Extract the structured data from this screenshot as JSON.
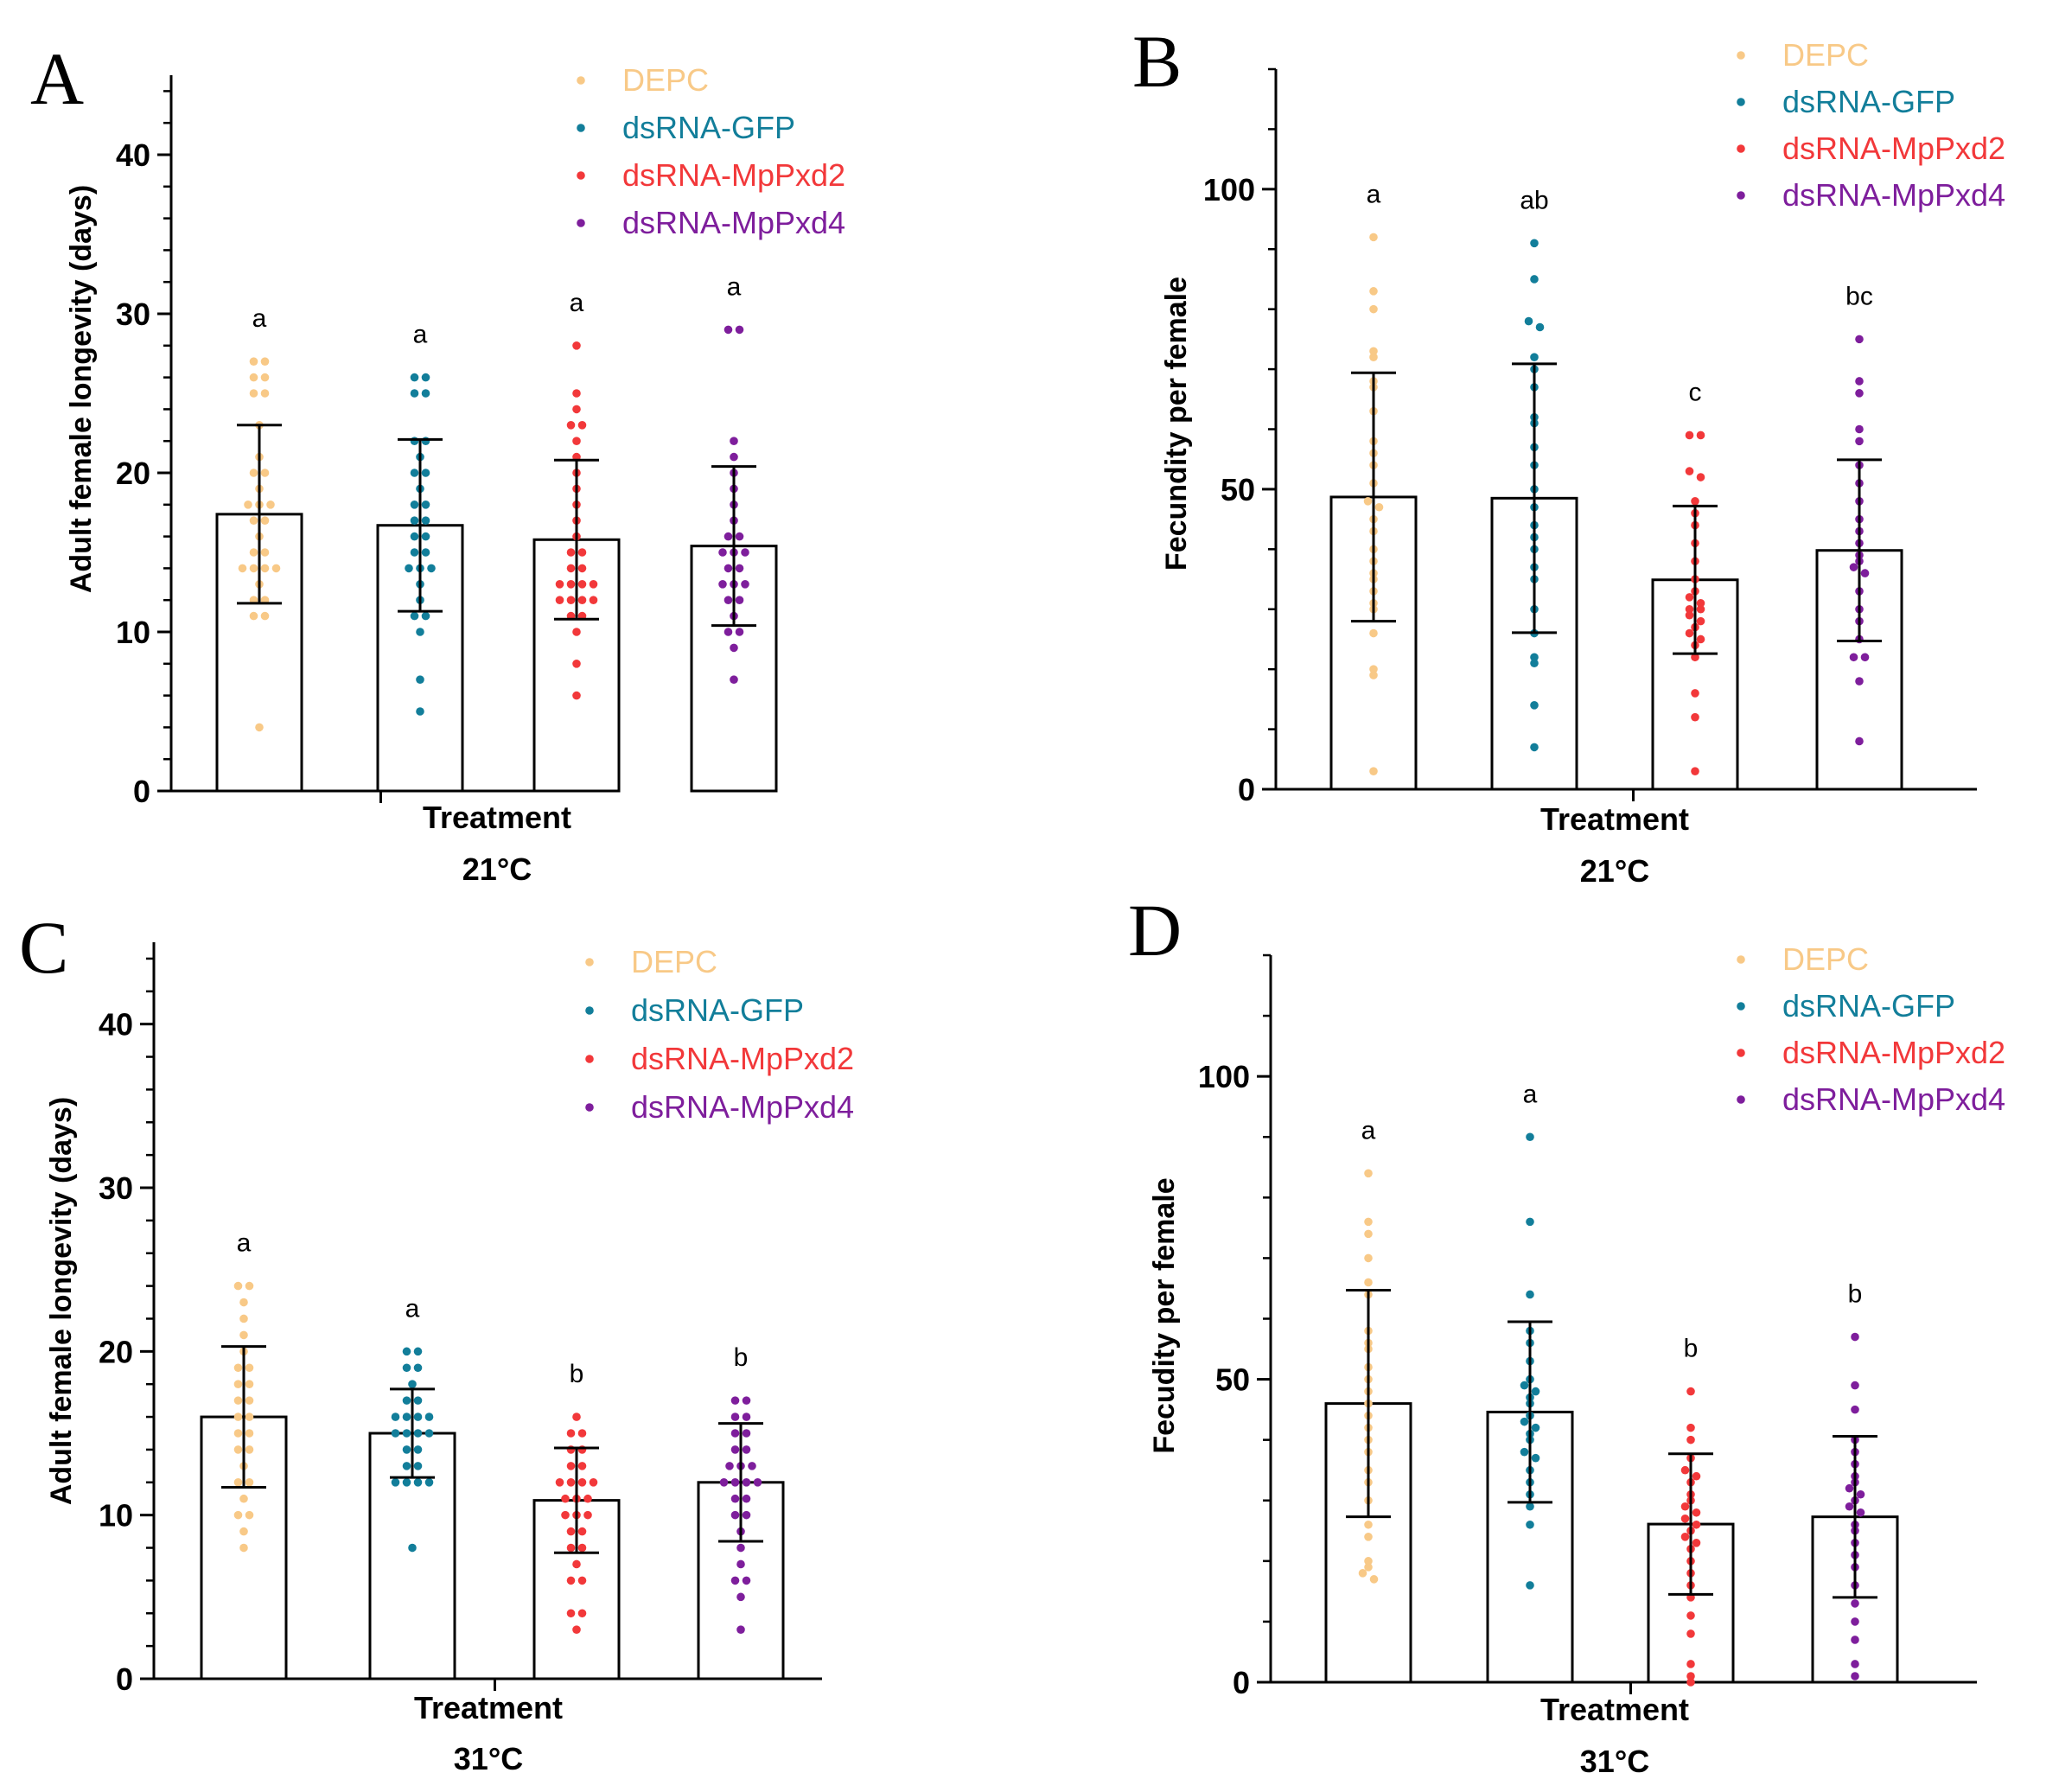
{
  "chart_data": [
    {
      "panel": "A",
      "type": "bar",
      "ylabel": "Adult female longevity (days)",
      "xlabel": "Treatment",
      "condition": "21°C",
      "ylim": [
        0,
        45
      ],
      "major_ticks": [
        0,
        10,
        20,
        30,
        40
      ],
      "categories": [
        "DEPC",
        "dsRNA-GFP",
        "dsRNA-MpPxd2",
        "dsRNA-MpPxd4"
      ],
      "series": [
        {
          "name": "DEPC",
          "color": "#F8C987",
          "mean": 17.4,
          "sd": 5.6,
          "letter": "a",
          "points": [
            27,
            27,
            26,
            26,
            25,
            25,
            23,
            21,
            20,
            20,
            19,
            18,
            18,
            18,
            17,
            17,
            16,
            15,
            15,
            14,
            14,
            14,
            14,
            13,
            12,
            12,
            11,
            11,
            4
          ]
        },
        {
          "name": "dsRNA-GFP",
          "color": "#127E9A",
          "mean": 16.7,
          "sd": 5.4,
          "letter": "a",
          "points": [
            26,
            26,
            25,
            25,
            22,
            22,
            21,
            20,
            20,
            19,
            18,
            18,
            17,
            17,
            16,
            16,
            15,
            15,
            14,
            14,
            14,
            13,
            12,
            11,
            11,
            10,
            7,
            5
          ]
        },
        {
          "name": "dsRNA-MpPxd2",
          "color": "#F2383A",
          "mean": 15.8,
          "sd": 5.0,
          "letter": "a",
          "points": [
            28,
            25,
            24,
            23,
            23,
            22,
            21,
            20,
            19,
            18,
            17,
            16,
            15,
            15,
            14,
            14,
            13,
            13,
            13,
            13,
            12,
            12,
            12,
            12,
            11,
            11,
            10,
            8,
            6
          ]
        },
        {
          "name": "dsRNA-MpPxd4",
          "color": "#7E1E9C",
          "mean": 15.4,
          "sd": 5.0,
          "letter": "a",
          "points": [
            29,
            29,
            22,
            21,
            20,
            19,
            18,
            17,
            16,
            16,
            15,
            15,
            15,
            14,
            14,
            13,
            13,
            13,
            12,
            12,
            11,
            10,
            10,
            9,
            7
          ]
        }
      ]
    },
    {
      "panel": "B",
      "type": "bar",
      "ylabel": "Fecundity per female",
      "xlabel": "Treatment",
      "condition": "21°C",
      "ylim": [
        0,
        120
      ],
      "major_ticks": [
        0,
        50,
        100
      ],
      "categories": [
        "DEPC",
        "dsRNA-GFP",
        "dsRNA-MpPxd2",
        "dsRNA-MpPxd4"
      ],
      "series": [
        {
          "name": "DEPC",
          "color": "#F8C987",
          "mean": 48.7,
          "sd": 20.7,
          "letter": "a",
          "points": [
            92,
            83,
            80,
            73,
            72,
            68,
            67,
            63,
            58,
            56,
            54,
            51,
            48,
            47,
            45,
            43,
            40,
            38,
            36,
            35,
            33,
            31,
            30,
            26,
            20,
            19,
            3
          ]
        },
        {
          "name": "dsRNA-GFP",
          "color": "#127E9A",
          "mean": 48.5,
          "sd": 22.4,
          "letter": "ab",
          "points": [
            91,
            85,
            78,
            77,
            72,
            70,
            67,
            62,
            61,
            57,
            54,
            50,
            47,
            44,
            42,
            40,
            37,
            35,
            30,
            26,
            22,
            21,
            14,
            7
          ]
        },
        {
          "name": "dsRNA-MpPxd2",
          "color": "#F2383A",
          "mean": 34.9,
          "sd": 12.3,
          "letter": "c",
          "points": [
            59,
            59,
            53,
            52,
            48,
            46,
            44,
            41,
            38,
            35,
            33,
            32,
            31,
            30,
            30,
            29,
            28,
            27,
            26,
            25,
            24,
            22,
            16,
            12,
            3
          ]
        },
        {
          "name": "dsRNA-MpPxd4",
          "color": "#7E1E9C",
          "mean": 39.8,
          "sd": 15.1,
          "letter": "bc",
          "points": [
            75,
            68,
            66,
            60,
            58,
            54,
            51,
            48,
            45,
            43,
            41,
            39,
            38,
            37,
            36,
            33,
            30,
            28,
            25,
            22,
            22,
            18,
            8
          ]
        }
      ]
    },
    {
      "panel": "C",
      "type": "bar",
      "ylabel": "Adult female longevity (days)",
      "xlabel": "Treatment",
      "condition": "31°C",
      "ylim": [
        0,
        45
      ],
      "major_ticks": [
        0,
        10,
        20,
        30,
        40
      ],
      "categories": [
        "DEPC",
        "dsRNA-GFP",
        "dsRNA-MpPxd2",
        "dsRNA-MpPxd4"
      ],
      "series": [
        {
          "name": "DEPC",
          "color": "#F8C987",
          "mean": 16.0,
          "sd": 4.3,
          "letter": "a",
          "points": [
            24,
            24,
            23,
            22,
            21,
            20,
            19,
            19,
            18,
            18,
            17,
            17,
            16,
            16,
            15,
            15,
            14,
            14,
            13,
            12,
            12,
            11,
            10,
            10,
            9,
            8
          ]
        },
        {
          "name": "dsRNA-GFP",
          "color": "#127E9A",
          "mean": 15.0,
          "sd": 2.7,
          "letter": "a",
          "points": [
            20,
            20,
            19,
            19,
            18,
            17,
            17,
            16,
            16,
            16,
            16,
            15,
            15,
            15,
            15,
            14,
            14,
            13,
            13,
            12,
            12,
            12,
            12,
            8
          ]
        },
        {
          "name": "dsRNA-MpPxd2",
          "color": "#F2383A",
          "mean": 10.9,
          "sd": 3.2,
          "letter": "b",
          "points": [
            16,
            15,
            15,
            14,
            14,
            13,
            13,
            12,
            12,
            12,
            12,
            11,
            11,
            11,
            10,
            10,
            10,
            9,
            9,
            8,
            8,
            7,
            6,
            6,
            4,
            4,
            3
          ]
        },
        {
          "name": "dsRNA-MpPxd4",
          "color": "#7E1E9C",
          "mean": 12.0,
          "sd": 3.6,
          "letter": "b",
          "points": [
            17,
            17,
            16,
            16,
            15,
            15,
            14,
            14,
            13,
            13,
            13,
            12,
            12,
            12,
            12,
            11,
            11,
            10,
            10,
            9,
            8,
            7,
            6,
            6,
            5,
            3
          ]
        }
      ]
    },
    {
      "panel": "D",
      "type": "bar",
      "ylabel": "Fecudity per female",
      "xlabel": "Treatment",
      "condition": "31°C",
      "ylim": [
        0,
        120
      ],
      "major_ticks": [
        0,
        50,
        100
      ],
      "categories": [
        "DEPC",
        "dsRNA-GFP",
        "dsRNA-MpPxd2",
        "dsRNA-MpPxd4"
      ],
      "series": [
        {
          "name": "DEPC",
          "color": "#F8C987",
          "mean": 46.0,
          "sd": 18.7,
          "letter": "a",
          "points": [
            84,
            76,
            74,
            70,
            66,
            64,
            58,
            56,
            55,
            52,
            50,
            48,
            46,
            44,
            42,
            40,
            38,
            35,
            33,
            30,
            26,
            24,
            20,
            19,
            18,
            17
          ]
        },
        {
          "name": "dsRNA-GFP",
          "color": "#127E9A",
          "mean": 44.6,
          "sd": 14.9,
          "letter": "a",
          "points": [
            90,
            76,
            64,
            58,
            56,
            53,
            50,
            49,
            48,
            47,
            46,
            44,
            43,
            42,
            41,
            40,
            38,
            37,
            35,
            33,
            31,
            29,
            26,
            16
          ]
        },
        {
          "name": "dsRNA-MpPxd2",
          "color": "#F2383A",
          "mean": 26.1,
          "sd": 11.6,
          "letter": "b",
          "points": [
            48,
            42,
            40,
            37,
            35,
            34,
            33,
            31,
            30,
            29,
            28,
            27,
            26,
            25,
            24,
            23,
            22,
            20,
            18,
            16,
            14,
            11,
            8,
            3,
            1,
            0
          ]
        },
        {
          "name": "dsRNA-MpPxd4",
          "color": "#7E1E9C",
          "mean": 27.3,
          "sd": 13.3,
          "letter": "b",
          "points": [
            57,
            49,
            45,
            40,
            38,
            36,
            34,
            33,
            32,
            31,
            30,
            29,
            28,
            26,
            25,
            23,
            21,
            19,
            16,
            13,
            10,
            7,
            3,
            1
          ]
        }
      ]
    }
  ]
}
